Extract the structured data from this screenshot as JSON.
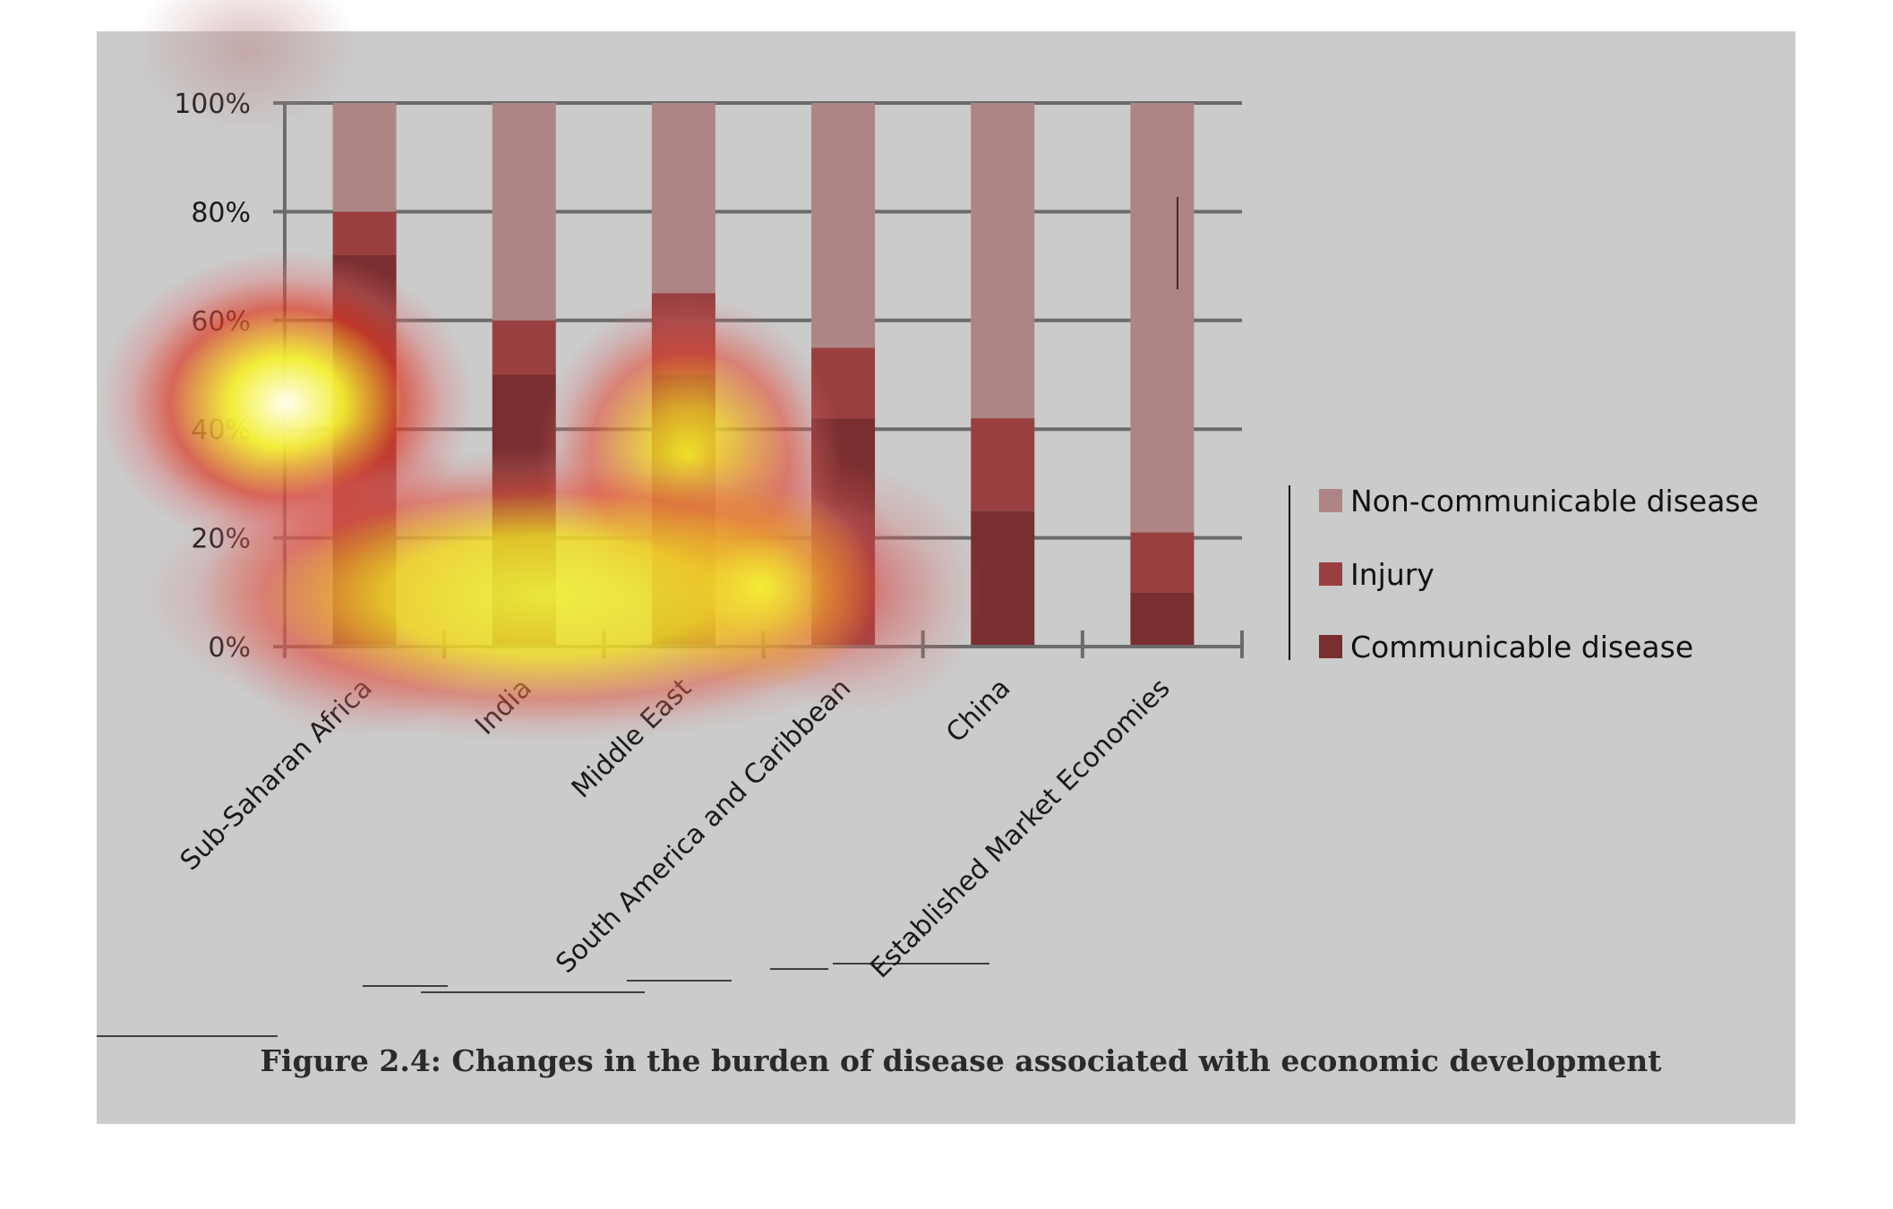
{
  "chart_data": {
    "type": "bar",
    "stacked": true,
    "title": "Figure 2.4: Changes in the burden of disease associated with economic development",
    "xlabel": "",
    "ylabel": "",
    "ylim": [
      0,
      100
    ],
    "y_ticks": [
      "0%",
      "20%",
      "40%",
      "60%",
      "80%",
      "100%"
    ],
    "categories": [
      "Sub-Saharan Africa",
      "India",
      "Middle East",
      "South America and Caribbean",
      "China",
      "Established Market Economies"
    ],
    "series": [
      {
        "name": "Communicable disease",
        "color": "#7a2e2f",
        "values": [
          72,
          50,
          50,
          42,
          25,
          10
        ]
      },
      {
        "name": "Injury",
        "color": "#9a3f3f",
        "values": [
          8,
          10,
          15,
          13,
          17,
          11
        ]
      },
      {
        "name": "Non-communicable disease",
        "color": "#ae8584",
        "values": [
          20,
          40,
          35,
          45,
          58,
          79
        ]
      }
    ],
    "legend": {
      "position": "right",
      "entries": [
        "Non-communicable disease",
        "Injury",
        "Communicable disease"
      ]
    },
    "grid": true,
    "overlay": "attention heatmap"
  },
  "colors": {
    "panel_background": "#cbcbcb",
    "gridline": "#6b6b6b"
  }
}
